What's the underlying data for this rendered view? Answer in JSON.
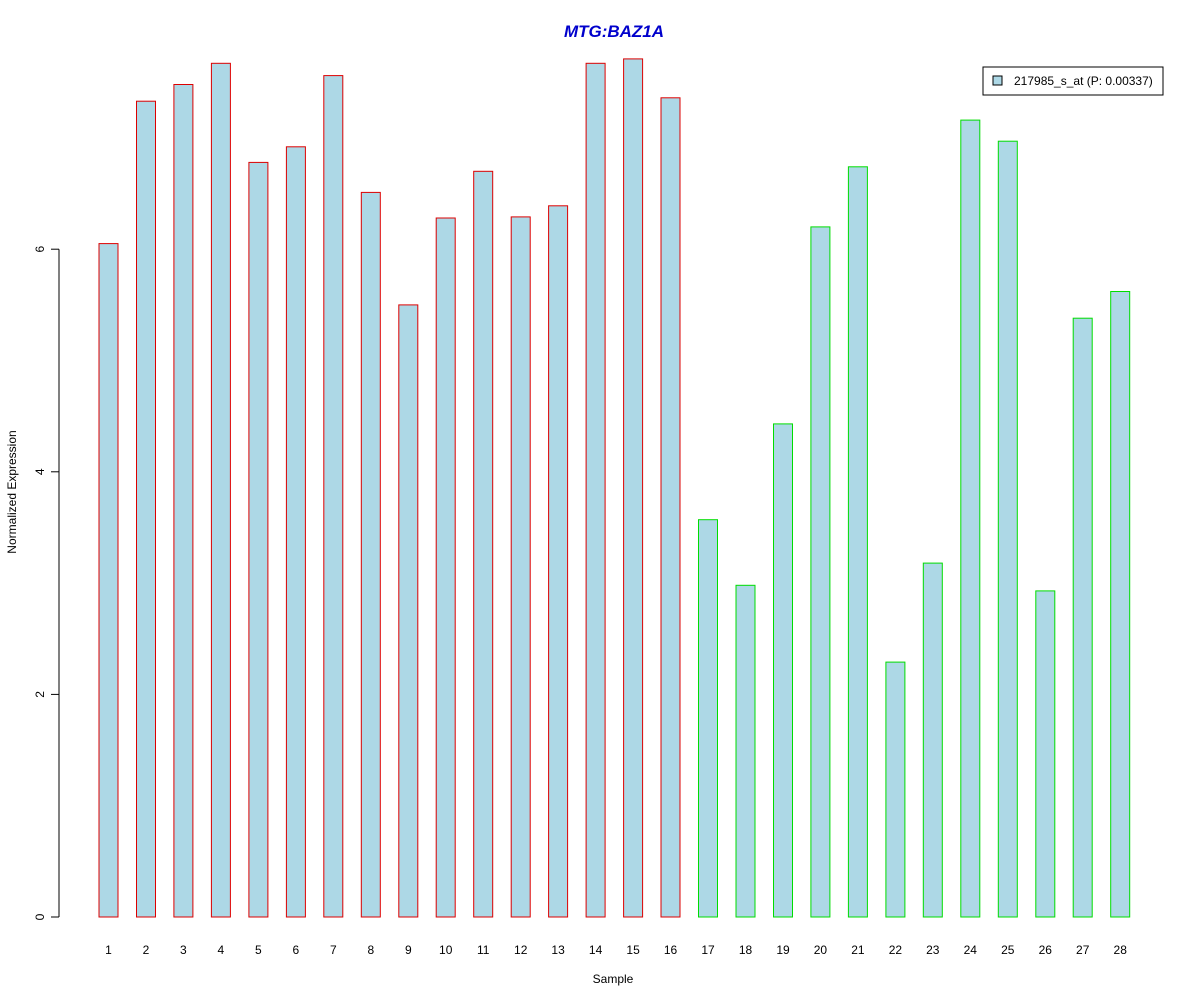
{
  "chart_data": {
    "type": "bar",
    "title": "MTG:BAZ1A",
    "xlabel": "Sample",
    "ylabel": "Normalized Expression",
    "categories": [
      "1",
      "2",
      "3",
      "4",
      "5",
      "6",
      "7",
      "8",
      "9",
      "10",
      "11",
      "12",
      "13",
      "14",
      "15",
      "16",
      "17",
      "18",
      "19",
      "20",
      "21",
      "22",
      "23",
      "24",
      "25",
      "26",
      "27",
      "28"
    ],
    "series": [
      {
        "name": "217985_s_at (P: 0.00337)",
        "values": [
          6.05,
          7.33,
          7.48,
          7.67,
          6.78,
          6.92,
          7.56,
          6.51,
          5.5,
          6.28,
          6.7,
          6.29,
          6.39,
          7.67,
          7.71,
          7.36,
          3.57,
          2.98,
          4.43,
          6.2,
          6.74,
          2.29,
          3.18,
          7.16,
          6.97,
          2.93,
          5.38,
          5.62
        ]
      }
    ],
    "groups": [
      {
        "samples": [
          1,
          2,
          3,
          4,
          5,
          6,
          7,
          8,
          9,
          10,
          11,
          12,
          13,
          14,
          15,
          16
        ],
        "border_color": "#dd0000"
      },
      {
        "samples": [
          17,
          18,
          19,
          20,
          21,
          22,
          23,
          24,
          25,
          26,
          27,
          28
        ],
        "border_color": "#00dd00"
      }
    ],
    "bar_fill": "#add8e6",
    "title_color": "#0000cc",
    "y_ticks": [
      "0",
      "2",
      "4",
      "6"
    ],
    "ylim": [
      0,
      7.7
    ],
    "grid": false,
    "legend": {
      "position": "top-right",
      "label": "217985_s_at (P: 0.00337)"
    }
  }
}
